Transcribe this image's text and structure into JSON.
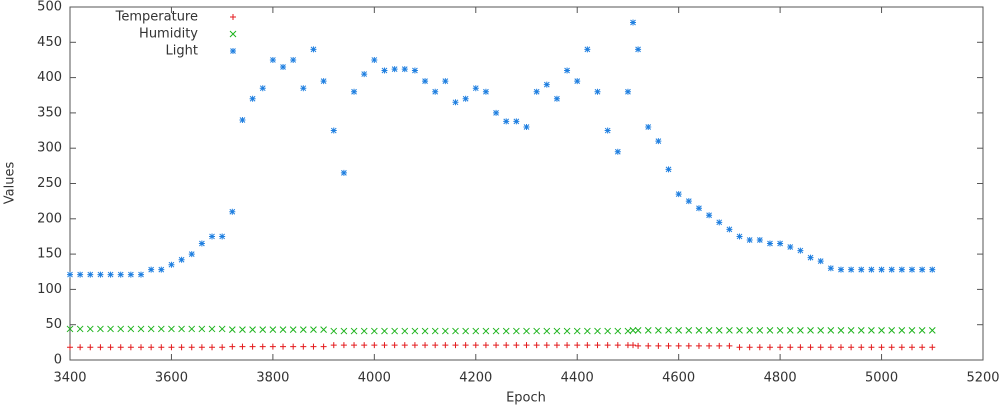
{
  "chart_data": {
    "type": "scatter",
    "x_label": "Epoch",
    "y_label": "Values",
    "xlim": [
      3400,
      5200
    ],
    "xticks": [
      3400,
      3600,
      3800,
      4000,
      4200,
      4400,
      4600,
      4800,
      5000,
      5200
    ],
    "ylim": [
      0,
      500
    ],
    "yticks": [
      0,
      50,
      100,
      150,
      200,
      250,
      300,
      350,
      400,
      450,
      500
    ],
    "grid": false,
    "legend": "top-left",
    "x": [
      3400,
      3420,
      3440,
      3460,
      3480,
      3500,
      3520,
      3540,
      3560,
      3580,
      3600,
      3620,
      3640,
      3660,
      3680,
      3700,
      3720,
      3740,
      3760,
      3780,
      3800,
      3820,
      3840,
      3860,
      3880,
      3900,
      3920,
      3940,
      3960,
      3980,
      4000,
      4020,
      4040,
      4060,
      4080,
      4100,
      4120,
      4140,
      4160,
      4180,
      4200,
      4220,
      4240,
      4260,
      4280,
      4300,
      4320,
      4340,
      4360,
      4380,
      4400,
      4420,
      4440,
      4460,
      4480,
      4500,
      4510,
      4520,
      4540,
      4560,
      4580,
      4600,
      4620,
      4640,
      4660,
      4680,
      4700,
      4720,
      4740,
      4760,
      4780,
      4800,
      4820,
      4840,
      4860,
      4880,
      4900,
      4920,
      4940,
      4960,
      4980,
      5000,
      5020,
      5040,
      5060,
      5080,
      5100
    ],
    "series": [
      {
        "name": "Temperature",
        "marker": "plus",
        "color": "#e41a1c",
        "values": [
          18,
          18,
          18,
          18,
          18,
          18,
          18,
          18,
          18,
          18,
          18,
          18,
          18,
          18,
          18,
          18,
          19,
          19,
          19,
          19,
          19,
          19,
          19,
          19,
          19,
          19,
          21,
          21,
          21,
          21,
          21,
          21,
          21,
          21,
          21,
          21,
          21,
          21,
          21,
          21,
          21,
          21,
          21,
          21,
          21,
          21,
          21,
          21,
          21,
          21,
          21,
          21,
          21,
          21,
          21,
          21,
          21,
          20,
          20,
          20,
          20,
          20,
          20,
          20,
          20,
          20,
          20,
          18,
          18,
          18,
          18,
          18,
          18,
          18,
          18,
          18,
          18,
          18,
          18,
          18,
          18,
          18,
          18,
          18,
          18,
          18,
          18
        ]
      },
      {
        "name": "Humidity",
        "marker": "cross",
        "color": "#1db31d",
        "values": [
          44,
          44,
          44,
          44,
          44,
          44,
          44,
          44,
          44,
          44,
          44,
          44,
          44,
          44,
          44,
          44,
          43,
          43,
          43,
          43,
          43,
          43,
          43,
          43,
          43,
          43,
          41,
          41,
          41,
          41,
          41,
          41,
          41,
          41,
          41,
          41,
          41,
          41,
          41,
          41,
          41,
          41,
          41,
          41,
          41,
          41,
          41,
          41,
          41,
          41,
          41,
          41,
          41,
          41,
          41,
          41,
          42,
          42,
          42,
          42,
          42,
          42,
          42,
          42,
          42,
          42,
          42,
          42,
          42,
          42,
          42,
          42,
          42,
          42,
          42,
          42,
          42,
          42,
          42,
          42,
          42,
          42,
          42,
          42,
          42,
          42,
          42
        ]
      },
      {
        "name": "Light",
        "marker": "star",
        "color": "#1f7fe0",
        "values": [
          121,
          121,
          121,
          121,
          121,
          121,
          121,
          121,
          128,
          128,
          135,
          142,
          150,
          165,
          175,
          175,
          210,
          340,
          370,
          385,
          425,
          415,
          425,
          385,
          440,
          395,
          325,
          265,
          380,
          405,
          425,
          410,
          412,
          412,
          410,
          395,
          380,
          395,
          365,
          370,
          385,
          380,
          350,
          338,
          338,
          330,
          380,
          390,
          370,
          410,
          395,
          440,
          380,
          325,
          295,
          380,
          478,
          440,
          330,
          310,
          270,
          235,
          225,
          215,
          205,
          195,
          185,
          175,
          170,
          170,
          165,
          165,
          160,
          155,
          145,
          140,
          130,
          128,
          128,
          128,
          128,
          128,
          128,
          128,
          128,
          128,
          128
        ]
      }
    ]
  }
}
